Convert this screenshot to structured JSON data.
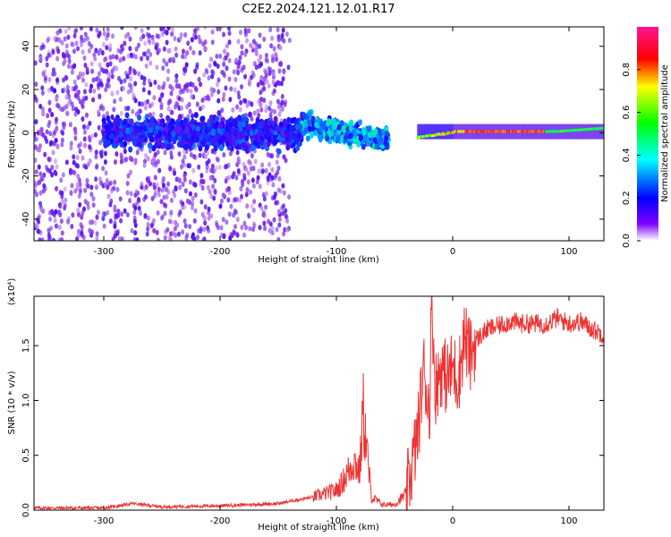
{
  "title": "C2E2.2024.121.12.01.R17",
  "chart_data": [
    {
      "type": "heatmap",
      "name": "spectrogram",
      "xlabel": "Height of straight line (km)",
      "ylabel": "Frequency (Hz)",
      "xlim": [
        -360,
        130
      ],
      "ylim": [
        -50,
        49
      ],
      "xticks": [
        -300,
        -200,
        -100,
        0,
        100
      ],
      "xtick_labels": [
        "-300",
        "-200",
        "-100",
        "0",
        "100"
      ],
      "yticks": [
        -40,
        -20,
        0,
        20,
        40
      ],
      "ytick_labels": [
        "-40",
        "-20",
        "0",
        "20",
        "40"
      ],
      "colorbar": {
        "label": "Normalized spectral amplitude",
        "range": [
          0,
          1
        ],
        "ticks": [
          0.0,
          0.2,
          0.4,
          0.6,
          0.8
        ],
        "tick_labels": [
          "0.0",
          "0.2",
          "0.4",
          "0.6",
          "0.8"
        ],
        "colormap": [
          "#ffffff",
          "#7f00ff",
          "#0000ff",
          "#00ffff",
          "#00ff00",
          "#ffff00",
          "#ff0000",
          "#ff1493"
        ]
      },
      "regions": [
        {
          "x": [
            -360,
            -140
          ],
          "freq_spread": 49,
          "amplitude": 0.1,
          "description": "broadband noise"
        },
        {
          "x": [
            -300,
            -60
          ],
          "freq_center": 0,
          "freq_spread": 12,
          "amplitude": 0.25
        },
        {
          "x": [
            -130,
            -30
          ],
          "freq_center_trend": [
            4,
            -8
          ],
          "amplitude": 0.45
        },
        {
          "x": [
            -25,
            130
          ],
          "freq_center": 0.5,
          "freq_spread": 1.5,
          "amplitude": 0.8
        }
      ]
    },
    {
      "type": "line",
      "name": "snr",
      "xlabel": "Height of straight line (km)",
      "ylabel": "SNR (10 * v/v)",
      "yscale_note": "(x10⁴)",
      "xlim": [
        -360,
        130
      ],
      "ylim": [
        0.0,
        1.95
      ],
      "xticks": [
        -300,
        -200,
        -100,
        0,
        100
      ],
      "xtick_labels": [
        "-300",
        "-200",
        "-100",
        "0",
        "100"
      ],
      "yticks": [
        0.0,
        0.5,
        1.0,
        1.5
      ],
      "ytick_labels": [
        "0.0",
        "0.5",
        "1.0",
        "1.5"
      ],
      "color": "#ee3333",
      "series": [
        {
          "name": "SNR",
          "x": [
            -360,
            -300,
            -275,
            -250,
            -200,
            -150,
            -120,
            -100,
            -95,
            -90,
            -85,
            -80,
            -77,
            -70,
            -60,
            -50,
            -40,
            -35,
            -30,
            -25,
            -20,
            -18,
            -15,
            -10,
            -5,
            0,
            5,
            10,
            15,
            20,
            25,
            30,
            40,
            50,
            60,
            80,
            90,
            100,
            110,
            120,
            130
          ],
          "y": [
            0.02,
            0.02,
            0.06,
            0.03,
            0.04,
            0.06,
            0.12,
            0.18,
            0.25,
            0.35,
            0.45,
            0.35,
            0.9,
            0.12,
            0.05,
            0.05,
            0.15,
            0.4,
            0.7,
            1.3,
            0.9,
            1.95,
            1.1,
            1.3,
            1.2,
            1.3,
            1.2,
            1.6,
            1.4,
            1.55,
            1.6,
            1.65,
            1.68,
            1.72,
            1.7,
            1.7,
            1.75,
            1.7,
            1.72,
            1.65,
            1.6
          ]
        }
      ]
    }
  ]
}
